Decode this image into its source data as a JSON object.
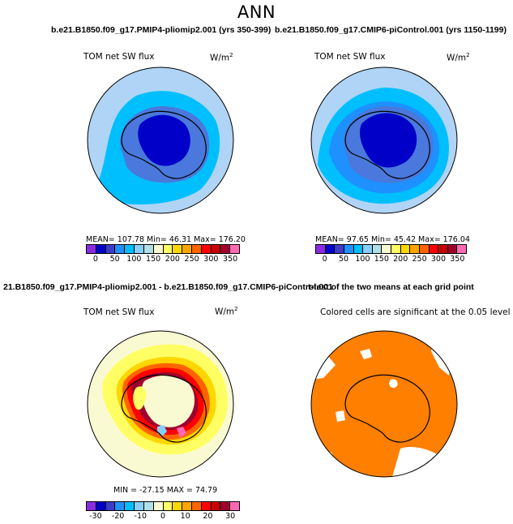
{
  "figure": {
    "title": "ANN"
  },
  "chart_data": [
    {
      "type": "heatmap",
      "panel": "top-left",
      "title": "b.e21.B1850.f09_g17.PMIP4-pliomip2.001 (yrs 350-399)",
      "field_label": "TOM net SW flux",
      "units": "W/m",
      "units_superscript": "2",
      "stats_text": "MEAN= 107.78   Min=  46.31   Max= 176.20",
      "stats": {
        "mean": 107.78,
        "min": 46.31,
        "max": 176.2
      },
      "colorbar_levels": [
        "0",
        "50",
        "100",
        "150",
        "200",
        "250",
        "300",
        "350"
      ],
      "colorbar_colors": [
        "#8a2be2",
        "#0000c8",
        "#3c3cc8",
        "#1e90ff",
        "#00bfff",
        "#87cefa",
        "#b0e0e6",
        "#fafad2",
        "#ffff64",
        "#ffd700",
        "#ffa500",
        "#ff6400",
        "#ff0000",
        "#c80000",
        "#a0002d",
        "#ff69b4"
      ]
    },
    {
      "type": "heatmap",
      "panel": "top-right",
      "title": "b.e21.B1850.f09_g17.CMIP6-piControl.001 (yrs 1150-1199)",
      "field_label": "TOM net SW flux",
      "units": "W/m",
      "units_superscript": "2",
      "stats_text": "MEAN=  97.65   Min=  45.42   Max= 176.04",
      "stats": {
        "mean": 97.65,
        "min": 45.42,
        "max": 176.04
      },
      "colorbar_levels": [
        "0",
        "50",
        "100",
        "150",
        "200",
        "250",
        "300",
        "350"
      ],
      "colorbar_colors": [
        "#8a2be2",
        "#0000c8",
        "#3c3cc8",
        "#1e90ff",
        "#00bfff",
        "#87cefa",
        "#b0e0e6",
        "#fafad2",
        "#ffff64",
        "#ffd700",
        "#ffa500",
        "#ff6400",
        "#ff0000",
        "#c80000",
        "#a0002d",
        "#ff69b4"
      ]
    },
    {
      "type": "heatmap",
      "panel": "bottom-left",
      "title": "21.B1850.f09_g17.PMIP4-pliomip2.001 - b.e21.B1850.f09_g17.CMIP6-piControl.001",
      "field_label": "TOM net SW flux",
      "units": "W/m",
      "units_superscript": "2",
      "stats_text": "MIN = -27.15  MAX =  74.79",
      "stats": {
        "min": -27.15,
        "max": 74.79
      },
      "colorbar_levels": [
        "-30",
        "-20",
        "-10",
        "0",
        "10",
        "20",
        "30"
      ],
      "colorbar_colors": [
        "#8a2be2",
        "#0000c8",
        "#3c3cc8",
        "#1e90ff",
        "#00bfff",
        "#87cefa",
        "#b0e0e6",
        "#fafad2",
        "#ffff64",
        "#ffd700",
        "#ffa500",
        "#ff6400",
        "#ff0000",
        "#c80000",
        "#a0002d",
        "#ff69b4"
      ]
    },
    {
      "type": "heatmap",
      "panel": "bottom-right",
      "title": "t-test of the two means at each grid point",
      "field_label": "Colored cells are significant at the 0.05 level",
      "significance_color": "#ff7f00"
    }
  ],
  "colors": {
    "ocean_outer": "#b0d4f5",
    "ocean_mid": "#00bfff",
    "ocean_band": "#1e90ff",
    "land_mid": "#4a78dc",
    "land_high": "#0000c8",
    "diff_pale": "#fafad2",
    "diff_yellow": "#ffff64",
    "diff_gold": "#ffd700",
    "diff_orange": "#ffa500",
    "diff_dorange": "#ff6400",
    "diff_red": "#ff0000",
    "diff_dred": "#a0002d",
    "diff_blue": "#87cefa",
    "diff_paleblue": "#d6ecfa",
    "signif": "#ff7f00",
    "coast": "#000000"
  }
}
